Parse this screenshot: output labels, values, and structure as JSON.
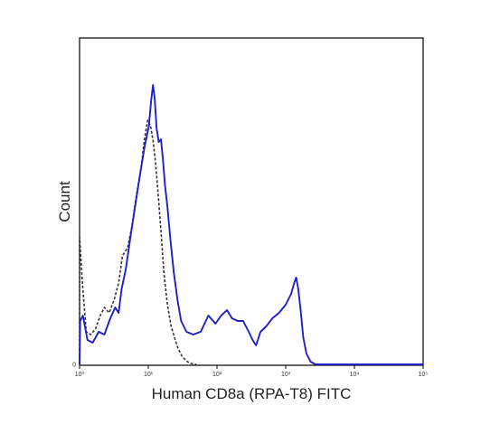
{
  "chart_data": {
    "type": "line",
    "xlabel": "Human CD8a (RPA-T8) FITC",
    "ylabel": "Count",
    "x_scale": "log",
    "xlim": [
      1,
      100000
    ],
    "ylim": [
      0,
      100
    ],
    "grid": false,
    "x_tick_labels": [
      "10⁰",
      "10¹",
      "10²",
      "10³",
      "10⁴",
      "10⁵"
    ],
    "x_tick_values": [
      1,
      10,
      100,
      1000,
      10000,
      100000
    ],
    "y_tick_labels": [
      "0"
    ],
    "y_tick_values": [
      0
    ],
    "series": [
      {
        "style": "dashed",
        "color": "#333333",
        "points": [
          [
            1.0,
            0
          ],
          [
            1.0,
            47
          ],
          [
            1.1,
            30
          ],
          [
            1.25,
            12
          ],
          [
            1.45,
            11
          ],
          [
            1.7,
            13
          ],
          [
            2.0,
            18
          ],
          [
            2.3,
            21
          ],
          [
            2.7,
            19
          ],
          [
            3.2,
            24
          ],
          [
            3.7,
            30
          ],
          [
            4.2,
            40
          ],
          [
            5.0,
            43
          ],
          [
            5.8,
            51
          ],
          [
            6.5,
            60
          ],
          [
            7.2,
            67
          ],
          [
            8.0,
            74
          ],
          [
            8.8,
            83
          ],
          [
            9.8,
            90
          ],
          [
            10.8,
            88
          ],
          [
            11.8,
            82
          ],
          [
            12.8,
            74
          ],
          [
            14.0,
            62
          ],
          [
            15.5,
            47
          ],
          [
            17.0,
            33
          ],
          [
            19.0,
            22
          ],
          [
            21.5,
            14
          ],
          [
            24.0,
            10
          ],
          [
            27.0,
            6
          ],
          [
            31.0,
            3
          ],
          [
            36.0,
            1.2
          ],
          [
            42.0,
            0.3
          ],
          [
            50.0,
            0
          ]
        ]
      },
      {
        "style": "solid",
        "color": "#1f1fcc",
        "points": [
          [
            1.0,
            0
          ],
          [
            1.02,
            16
          ],
          [
            1.12,
            18
          ],
          [
            1.3,
            9
          ],
          [
            1.55,
            8
          ],
          [
            1.9,
            12
          ],
          [
            2.3,
            11
          ],
          [
            2.8,
            17
          ],
          [
            3.3,
            21
          ],
          [
            3.7,
            19
          ],
          [
            4.1,
            28
          ],
          [
            4.7,
            35
          ],
          [
            5.5,
            47
          ],
          [
            6.5,
            59
          ],
          [
            7.6,
            70
          ],
          [
            8.8,
            80
          ],
          [
            10.2,
            88
          ],
          [
            11.0,
            97
          ],
          [
            11.7,
            103
          ],
          [
            12.4,
            98
          ],
          [
            13.2,
            87
          ],
          [
            14.2,
            82
          ],
          [
            15.3,
            83
          ],
          [
            16.3,
            76
          ],
          [
            17.5,
            66
          ],
          [
            19.0,
            58
          ],
          [
            21.0,
            46
          ],
          [
            23.5,
            34
          ],
          [
            26.5,
            24
          ],
          [
            30.0,
            16
          ],
          [
            36.0,
            12
          ],
          [
            45.0,
            11
          ],
          [
            58.0,
            12
          ],
          [
            75.0,
            18
          ],
          [
            95.0,
            15
          ],
          [
            115.0,
            18
          ],
          [
            140.0,
            20
          ],
          [
            165.0,
            17
          ],
          [
            200.0,
            16
          ],
          [
            240.0,
            16
          ],
          [
            290.0,
            12
          ],
          [
            330.0,
            9
          ],
          [
            370.0,
            7
          ],
          [
            430.0,
            12
          ],
          [
            520.0,
            14
          ],
          [
            640.0,
            17
          ],
          [
            800.0,
            19
          ],
          [
            1000.0,
            22
          ],
          [
            1200.0,
            26
          ],
          [
            1330.0,
            30
          ],
          [
            1420.0,
            32
          ],
          [
            1520.0,
            28
          ],
          [
            1650.0,
            20
          ],
          [
            1800.0,
            10
          ],
          [
            2000.0,
            4
          ],
          [
            2300.0,
            1
          ],
          [
            2700.0,
            0
          ],
          [
            100000.0,
            0
          ]
        ]
      }
    ]
  }
}
